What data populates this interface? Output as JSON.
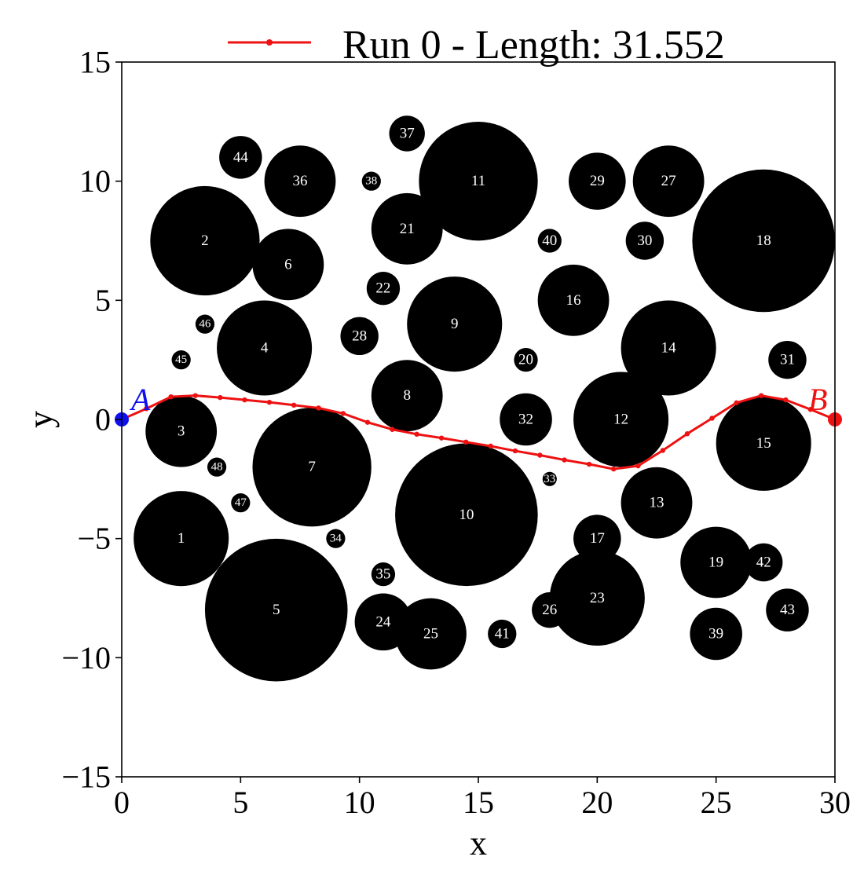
{
  "chart_data": {
    "type": "scatter",
    "xlabel": "x",
    "ylabel": "y",
    "xlim": [
      0,
      30
    ],
    "ylim": [
      -15,
      15
    ],
    "x_ticks": [
      0,
      5,
      10,
      15,
      20,
      25,
      30
    ],
    "y_ticks": [
      -15,
      -10,
      -5,
      0,
      5,
      10,
      15
    ],
    "y_tick_labels": [
      "−15",
      "−10",
      "−5",
      "0",
      "5",
      "10",
      "15"
    ],
    "x_tick_labels": [
      "0",
      "5",
      "10",
      "15",
      "20",
      "25",
      "30"
    ],
    "grid": false,
    "legend_position": "top-center",
    "series": [
      {
        "name": "Run 0 - Length: 31.552",
        "color": "#ee1111",
        "x": [
          0,
          1.03,
          2.07,
          3.1,
          4.14,
          5.17,
          6.21,
          7.24,
          8.28,
          9.31,
          10.34,
          11.38,
          12.41,
          13.45,
          14.48,
          15.52,
          16.55,
          17.59,
          18.62,
          19.66,
          20.69,
          21.72,
          22.76,
          23.79,
          24.83,
          25.86,
          26.9,
          27.93,
          28.97,
          30
        ],
        "y": [
          0,
          0.45,
          0.95,
          1.0,
          0.92,
          0.82,
          0.72,
          0.6,
          0.48,
          0.25,
          -0.12,
          -0.42,
          -0.62,
          -0.78,
          -0.95,
          -1.12,
          -1.32,
          -1.5,
          -1.7,
          -1.88,
          -2.08,
          -1.95,
          -1.3,
          -0.6,
          0.05,
          0.7,
          1.0,
          0.82,
          0.42,
          0
        ]
      }
    ],
    "points": [
      {
        "label": "A",
        "x": 0,
        "y": 0,
        "color": "#1010ee"
      },
      {
        "label": "B",
        "x": 30,
        "y": 0,
        "color": "#ee1111"
      }
    ],
    "obstacles": [
      {
        "id": "1",
        "x": 2.5,
        "y": -5,
        "r": 2.0
      },
      {
        "id": "2",
        "x": 3.5,
        "y": 7.5,
        "r": 2.3
      },
      {
        "id": "3",
        "x": 2.5,
        "y": -0.5,
        "r": 1.5
      },
      {
        "id": "4",
        "x": 6,
        "y": 3,
        "r": 2.0
      },
      {
        "id": "5",
        "x": 6.5,
        "y": -8,
        "r": 3.0
      },
      {
        "id": "6",
        "x": 7,
        "y": 6.5,
        "r": 1.5
      },
      {
        "id": "7",
        "x": 8,
        "y": -2,
        "r": 2.5
      },
      {
        "id": "8",
        "x": 12,
        "y": 1,
        "r": 1.5
      },
      {
        "id": "9",
        "x": 14,
        "y": 4,
        "r": 2.0
      },
      {
        "id": "10",
        "x": 14.5,
        "y": -4,
        "r": 3.0
      },
      {
        "id": "11",
        "x": 15,
        "y": 10,
        "r": 2.5
      },
      {
        "id": "12",
        "x": 21,
        "y": 0,
        "r": 2.0
      },
      {
        "id": "13",
        "x": 22.5,
        "y": -3.5,
        "r": 1.5
      },
      {
        "id": "14",
        "x": 23,
        "y": 3,
        "r": 2.0
      },
      {
        "id": "15",
        "x": 27,
        "y": -1,
        "r": 2.0
      },
      {
        "id": "16",
        "x": 19,
        "y": 5,
        "r": 1.5
      },
      {
        "id": "17",
        "x": 20,
        "y": -5,
        "r": 1.0
      },
      {
        "id": "18",
        "x": 27,
        "y": 7.5,
        "r": 3.0
      },
      {
        "id": "19",
        "x": 25,
        "y": -6,
        "r": 1.5
      },
      {
        "id": "20",
        "x": 17,
        "y": 2.5,
        "r": 0.5
      },
      {
        "id": "21",
        "x": 12,
        "y": 8,
        "r": 1.5
      },
      {
        "id": "22",
        "x": 11,
        "y": 5.5,
        "r": 0.7
      },
      {
        "id": "23",
        "x": 20,
        "y": -7.5,
        "r": 2.0
      },
      {
        "id": "24",
        "x": 11,
        "y": -8.5,
        "r": 1.2
      },
      {
        "id": "25",
        "x": 13,
        "y": -9,
        "r": 1.5
      },
      {
        "id": "26",
        "x": 18,
        "y": -8,
        "r": 0.75
      },
      {
        "id": "27",
        "x": 23,
        "y": 10,
        "r": 1.5
      },
      {
        "id": "28",
        "x": 10,
        "y": 3.5,
        "r": 0.8
      },
      {
        "id": "29",
        "x": 20,
        "y": 10,
        "r": 1.2
      },
      {
        "id": "30",
        "x": 22,
        "y": 7.5,
        "r": 0.8
      },
      {
        "id": "31",
        "x": 28,
        "y": 2.5,
        "r": 0.8
      },
      {
        "id": "32",
        "x": 17,
        "y": 0,
        "r": 1.1
      },
      {
        "id": "33",
        "x": 18,
        "y": -2.5,
        "r": 0.3
      },
      {
        "id": "34",
        "x": 9,
        "y": -5,
        "r": 0.4
      },
      {
        "id": "35",
        "x": 11,
        "y": -6.5,
        "r": 0.5
      },
      {
        "id": "36",
        "x": 7.5,
        "y": 10,
        "r": 1.5
      },
      {
        "id": "37",
        "x": 12,
        "y": 12,
        "r": 0.75
      },
      {
        "id": "38",
        "x": 10.5,
        "y": 10,
        "r": 0.4
      },
      {
        "id": "39",
        "x": 25,
        "y": -9,
        "r": 1.1
      },
      {
        "id": "40",
        "x": 18,
        "y": 7.5,
        "r": 0.5
      },
      {
        "id": "41",
        "x": 16,
        "y": -9,
        "r": 0.6
      },
      {
        "id": "42",
        "x": 27,
        "y": -6,
        "r": 0.8
      },
      {
        "id": "43",
        "x": 28,
        "y": -8,
        "r": 0.9
      },
      {
        "id": "44",
        "x": 5,
        "y": 11,
        "r": 0.9
      },
      {
        "id": "45",
        "x": 2.5,
        "y": 2.5,
        "r": 0.4
      },
      {
        "id": "46",
        "x": 3.5,
        "y": 4,
        "r": 0.4
      },
      {
        "id": "47",
        "x": 5,
        "y": -3.5,
        "r": 0.4
      },
      {
        "id": "48",
        "x": 4,
        "y": -2,
        "r": 0.4
      }
    ]
  }
}
